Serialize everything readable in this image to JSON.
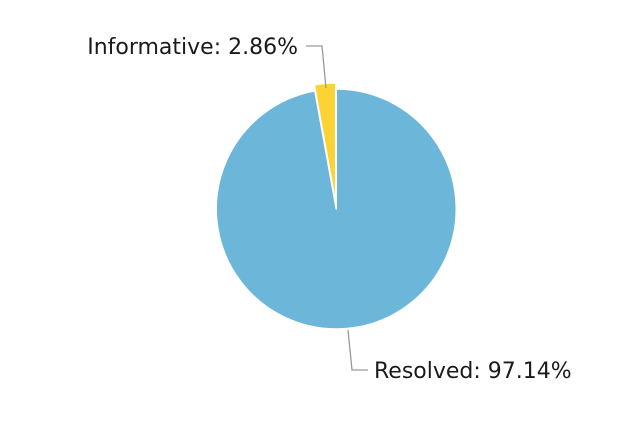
{
  "chart_data": {
    "type": "pie",
    "title": "",
    "legend": "none",
    "slices": [
      {
        "name": "Resolved",
        "value": 97.14,
        "label": "Resolved: 97.14%",
        "color": "#6bb6d9"
      },
      {
        "name": "Informative",
        "value": 2.86,
        "label": "Informative: 2.86%",
        "color": "#fcd335"
      }
    ],
    "start_angle_deg": 0,
    "direction": "clockwise",
    "exploded": true,
    "slice_border_color": "#ffffff"
  }
}
